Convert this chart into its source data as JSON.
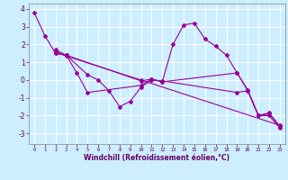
{
  "xlabel": "Windchill (Refroidissement éolien,°C)",
  "bg_color": "#cceeff",
  "grid_color": "#ffffff",
  "line_color": "#990099",
  "xlim": [
    -0.5,
    23.5
  ],
  "ylim": [
    -3.6,
    4.3
  ],
  "yticks": [
    -3,
    -2,
    -1,
    0,
    1,
    2,
    3,
    4
  ],
  "xticks": [
    0,
    1,
    2,
    3,
    4,
    5,
    6,
    7,
    8,
    9,
    10,
    11,
    12,
    13,
    14,
    15,
    16,
    17,
    18,
    19,
    20,
    21,
    22,
    23
  ],
  "series": [
    {
      "x": [
        0,
        1,
        2,
        3,
        4,
        5,
        10,
        11,
        12,
        13,
        14,
        15,
        16,
        17,
        18,
        19,
        20,
        21,
        22,
        23
      ],
      "y": [
        3.8,
        2.5,
        1.5,
        1.4,
        0.4,
        -0.7,
        -0.3,
        0.05,
        -0.1,
        2.0,
        3.1,
        3.2,
        2.3,
        1.9,
        1.4,
        0.4,
        -0.6,
        -2.0,
        -1.9,
        -2.6
      ]
    },
    {
      "x": [
        2,
        3,
        5,
        6,
        7,
        8,
        9,
        10,
        11,
        12,
        19,
        20,
        21,
        22,
        23
      ],
      "y": [
        1.5,
        1.4,
        0.3,
        0.0,
        -0.6,
        -1.5,
        -1.2,
        -0.4,
        0.0,
        -0.05,
        -0.7,
        -0.6,
        -2.0,
        -2.0,
        -2.7
      ]
    },
    {
      "x": [
        2,
        3,
        10,
        11,
        12,
        19,
        20,
        21,
        22,
        23
      ],
      "y": [
        1.7,
        1.4,
        -0.05,
        0.05,
        -0.1,
        0.4,
        -0.55,
        -2.0,
        -1.85,
        -2.6
      ]
    },
    {
      "x": [
        2,
        3,
        10,
        23
      ],
      "y": [
        1.6,
        1.35,
        0.0,
        -2.55
      ]
    }
  ]
}
